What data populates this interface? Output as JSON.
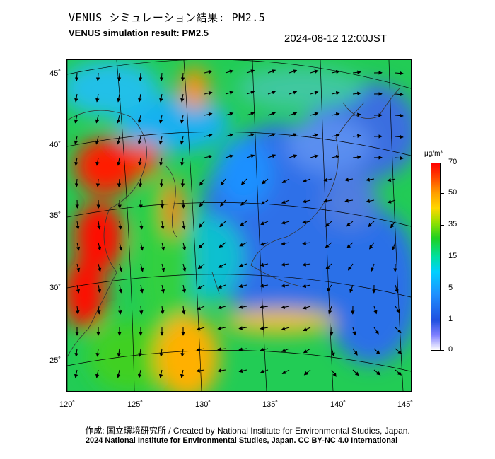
{
  "header": {
    "title_ja": "VENUS シミュレーション結果: PM2.5",
    "title_en": "VENUS simulation result: PM2.5",
    "timestamp": "2024-08-12 12:00JST"
  },
  "map": {
    "lat_labels": [
      "45˚",
      "40˚",
      "35˚",
      "30˚",
      "25˚"
    ],
    "lon_labels": [
      "120˚",
      "125˚",
      "130˚",
      "135˚",
      "140˚",
      "145˚"
    ],
    "field": "PM2.5 concentration with wind vectors"
  },
  "colorbar": {
    "unit": "μg/m³",
    "ticks": [
      "70",
      "50",
      "35",
      "15",
      "5",
      "1",
      "0"
    ]
  },
  "footer": {
    "credit_line_1": "作成: 国立環境研究所 / Created by National Institute for Environmental Studies, Japan.",
    "credit_line_2": "2024 National Institute for Environmental Studies, Japan. CC BY-NC 4.0 International"
  },
  "colors": {
    "high": "#ff0000",
    "mid_high": "#ffa000",
    "mid": "#20d020",
    "low": "#1e90ff",
    "very_low": "#8080ff"
  }
}
